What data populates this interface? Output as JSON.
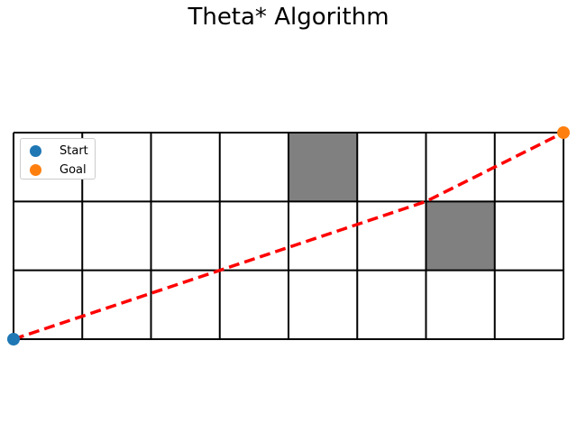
{
  "chart_data": {
    "type": "grid-path",
    "title": "Theta* Algorithm",
    "grid": {
      "columns": 8,
      "rows": 3,
      "obstacles": [
        {
          "col": 4,
          "row": 2
        },
        {
          "col": 6,
          "row": 1
        }
      ]
    },
    "start": {
      "x": 0,
      "y": 0,
      "label": "Start",
      "color": "#1f77b4"
    },
    "goal": {
      "x": 8,
      "y": 3,
      "label": "Goal",
      "color": "#ff7f0e"
    },
    "path": [
      {
        "x": 0,
        "y": 0
      },
      {
        "x": 6,
        "y": 2
      },
      {
        "x": 8,
        "y": 3
      }
    ],
    "path_color": "#ff0000",
    "obstacle_color": "#808080",
    "legend": [
      "Start",
      "Goal"
    ],
    "legend_placement": "upper-left"
  }
}
